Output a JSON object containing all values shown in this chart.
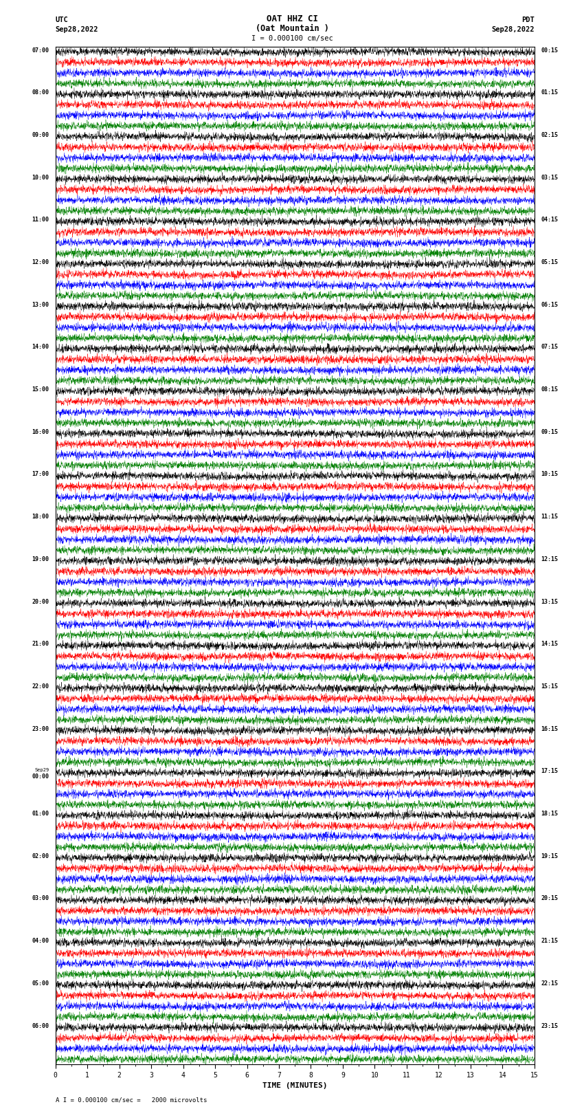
{
  "title_line1": "OAT HHZ CI",
  "title_line2": "(Oat Mountain )",
  "scale_label": "I = 0.000100 cm/sec",
  "utc_label": "UTC",
  "utc_date": "Sep28,2022",
  "pdt_label": "PDT",
  "pdt_date": "Sep28,2022",
  "xlabel": "TIME (MINUTES)",
  "footer": "A I = 0.000100 cm/sec =   2000 microvolts",
  "left_times": [
    "07:00",
    "08:00",
    "09:00",
    "10:00",
    "11:00",
    "12:00",
    "13:00",
    "14:00",
    "15:00",
    "16:00",
    "17:00",
    "18:00",
    "19:00",
    "20:00",
    "21:00",
    "22:00",
    "23:00",
    "Sep29\n00:00",
    "01:00",
    "02:00",
    "03:00",
    "04:00",
    "05:00",
    "06:00"
  ],
  "right_times": [
    "00:15",
    "01:15",
    "02:15",
    "03:15",
    "04:15",
    "05:15",
    "06:15",
    "07:15",
    "08:15",
    "09:15",
    "10:15",
    "11:15",
    "12:15",
    "13:15",
    "14:15",
    "15:15",
    "16:15",
    "17:15",
    "18:15",
    "19:15",
    "20:15",
    "21:15",
    "22:15",
    "23:15"
  ],
  "n_rows": 24,
  "traces_per_row": 4,
  "colors": [
    "black",
    "red",
    "blue",
    "green"
  ],
  "minutes_per_row": 15,
  "bg_color": "white",
  "trace_amplitude": 0.42,
  "noise_seed": 42,
  "samples_per_row": 3000,
  "linewidth": 0.3
}
